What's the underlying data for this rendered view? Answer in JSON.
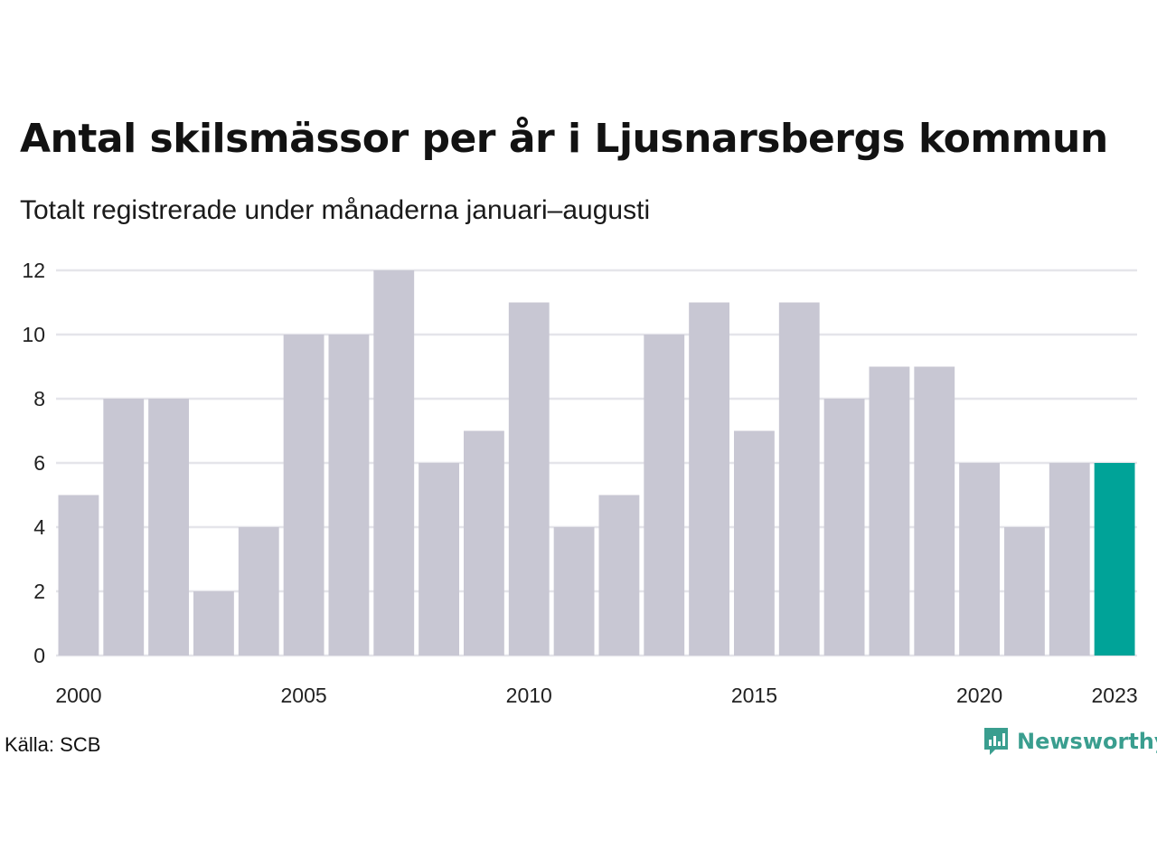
{
  "title": "Antal skilsmässor per år i Ljusnarsbergs kommun",
  "subtitle": "Totalt registrerade under månaderna januari–augusti",
  "source": "Källa: SCB",
  "brand": {
    "name": "Newsworthy",
    "color": "#3a9e8f",
    "icon": "newsworthy-logo-icon"
  },
  "colors": {
    "bar": "#c8c7d3",
    "highlight": "#00a398",
    "grid": "#e5e5ea"
  },
  "chart_data": {
    "type": "bar",
    "categories": [
      "2000",
      "2001",
      "2002",
      "2003",
      "2004",
      "2005",
      "2006",
      "2007",
      "2008",
      "2009",
      "2010",
      "2011",
      "2012",
      "2013",
      "2014",
      "2015",
      "2016",
      "2017",
      "2018",
      "2019",
      "2020",
      "2021",
      "2022",
      "2023"
    ],
    "values": [
      5,
      8,
      8,
      2,
      4,
      10,
      10,
      12,
      6,
      7,
      11,
      4,
      5,
      10,
      11,
      7,
      11,
      8,
      9,
      9,
      6,
      4,
      6,
      6
    ],
    "highlight_index": 23,
    "xtick_labels": [
      "2000",
      "2005",
      "2010",
      "2015",
      "2020",
      "2023"
    ],
    "yticks": [
      0,
      2,
      4,
      6,
      8,
      10,
      12
    ],
    "ylim": [
      0,
      12
    ],
    "grid": true,
    "title": "Antal skilsmässor per år i Ljusnarsbergs kommun",
    "subtitle": "Totalt registrerade under månaderna januari–augusti",
    "xlabel": "",
    "ylabel": ""
  }
}
